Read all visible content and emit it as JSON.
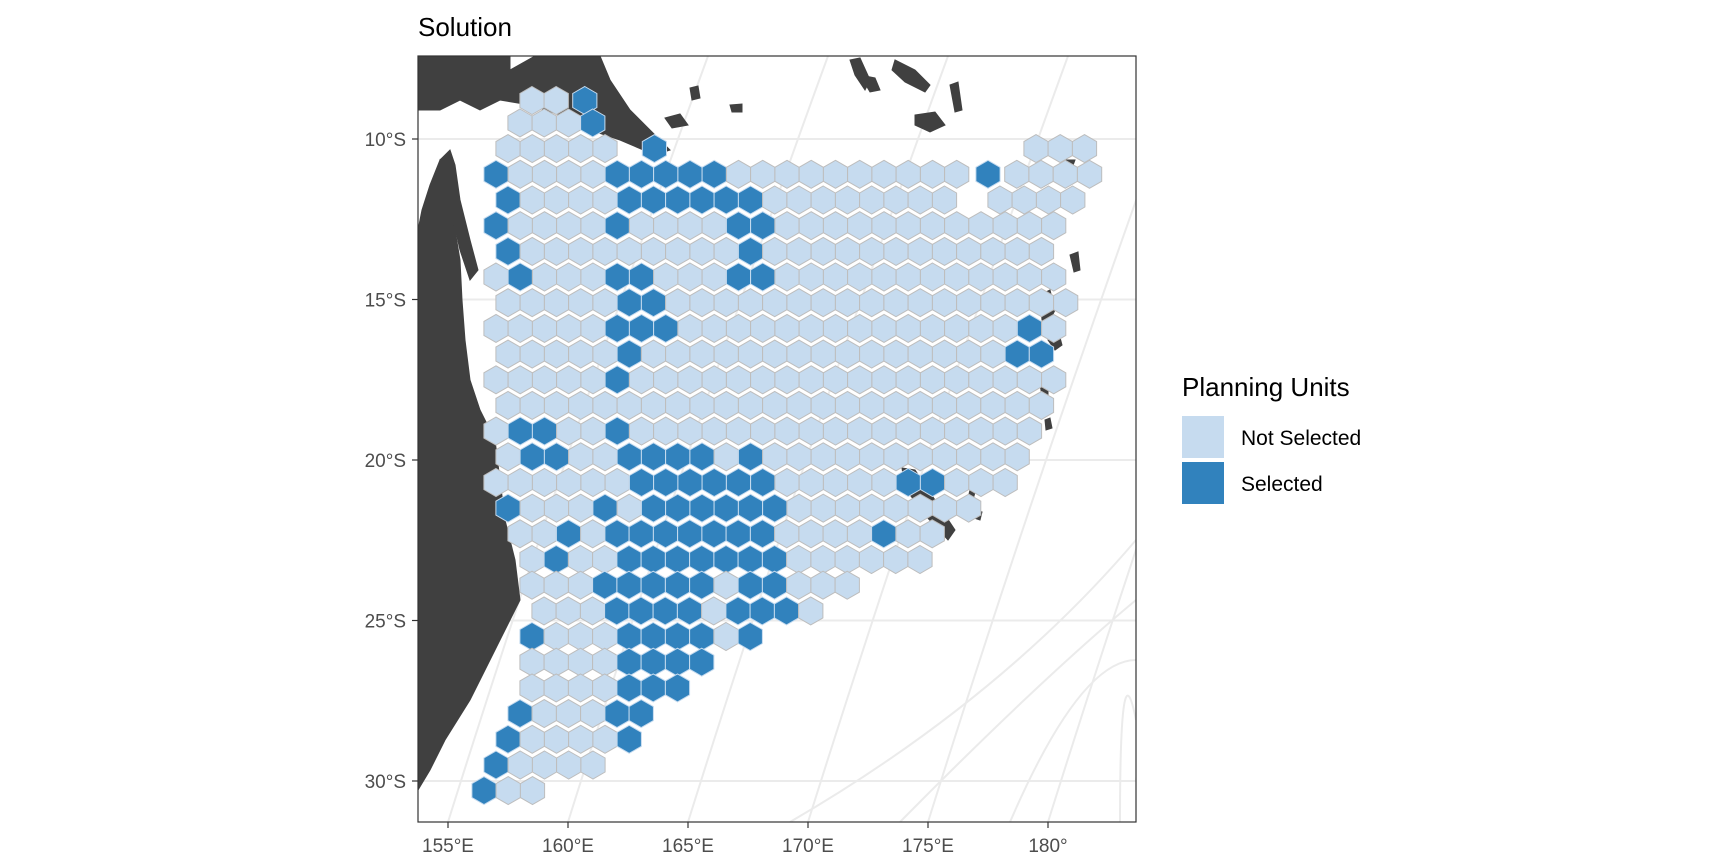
{
  "chart_data": {
    "type": "map",
    "title": "Solution",
    "x_ticks": [
      "155°E",
      "160°E",
      "165°E",
      "170°E",
      "175°E",
      "180°"
    ],
    "y_ticks": [
      "10°S",
      "15°S",
      "20°S",
      "25°S",
      "30°S"
    ],
    "legend": {
      "title": "Planning Units",
      "position": "right",
      "items": [
        {
          "label": "Not Selected",
          "color": "#c6dbef"
        },
        {
          "label": "Selected",
          "color": "#3182bd"
        }
      ]
    },
    "grid": true,
    "colors": {
      "not_selected": "#c6dbef",
      "selected": "#3182bd",
      "land": "#404040",
      "hex_border": "#bdbdbd",
      "graticule": "#ebebeb",
      "panel_border": "#333333"
    },
    "planning_units": {
      "rows": [
        {
          "lat": -8.8,
          "not_selected": [
            [
              158.5,
              159.6
            ]
          ],
          "selected": [
            160.7
          ]
        },
        {
          "lat": -9.5,
          "not_selected": [
            [
              158.0,
              161.3
            ]
          ],
          "selected": [
            161.3
          ]
        },
        {
          "lat": -10.3,
          "not_selected": [
            [
              157.5,
              162.5
            ],
            [
              179.5,
              181.5
            ]
          ],
          "selected": [
            162.5,
            163.6
          ]
        },
        {
          "lat": -11.1,
          "not_selected": [
            [
              157.0,
              176.4
            ],
            [
              178.7,
              182.0
            ]
          ],
          "selected": [
            157.0,
            162.0,
            163.1,
            164.2,
            165.3,
            166.4,
            177.5
          ]
        },
        {
          "lat": -11.9,
          "not_selected": [
            [
              157.5,
              175.8
            ],
            [
              178.0,
              181.5
            ]
          ],
          "selected": [
            157.5,
            162.5,
            163.6,
            164.7,
            165.8,
            166.9,
            168.0
          ]
        },
        {
          "lat": -12.7,
          "not_selected": [
            [
              157.0,
              181.0
            ]
          ],
          "selected": [
            157.0,
            162.0,
            167.4,
            168.5
          ]
        },
        {
          "lat": -13.5,
          "not_selected": [
            [
              157.5,
              180.5
            ]
          ],
          "selected": [
            157.5,
            168.0
          ]
        },
        {
          "lat": -14.3,
          "not_selected": [
            [
              157.0,
              181.0
            ]
          ],
          "selected": [
            158.0,
            162.0,
            163.1,
            167.4,
            168.5
          ]
        },
        {
          "lat": -15.1,
          "not_selected": [
            [
              157.5,
              181.5
            ]
          ],
          "selected": [
            162.5,
            163.6
          ]
        },
        {
          "lat": -15.9,
          "not_selected": [
            [
              157.0,
              181.0
            ]
          ],
          "selected": [
            162.0,
            163.1,
            164.2,
            179.5
          ]
        },
        {
          "lat": -16.7,
          "not_selected": [
            [
              157.5,
              180.5
            ]
          ],
          "selected": [
            162.5,
            178.7,
            179.8
          ]
        },
        {
          "lat": -17.5,
          "not_selected": [
            [
              157.0,
              181.0
            ]
          ],
          "selected": [
            162.0
          ]
        },
        {
          "lat": -18.3,
          "not_selected": [
            [
              157.5,
              180.5
            ]
          ],
          "selected": []
        },
        {
          "lat": -19.1,
          "not_selected": [
            [
              157.0,
              180.0
            ]
          ],
          "selected": [
            157.8,
            158.9,
            162.0
          ]
        },
        {
          "lat": -19.9,
          "not_selected": [
            [
              157.5,
              179.5
            ]
          ],
          "selected": [
            158.3,
            159.4,
            162.5,
            163.6,
            164.7,
            165.8,
            168.0
          ]
        },
        {
          "lat": -20.7,
          "not_selected": [
            [
              157.0,
              179.0
            ]
          ],
          "selected": [
            163.1,
            164.2,
            165.3,
            166.4,
            167.5,
            168.6,
            174.0,
            175.1
          ]
        },
        {
          "lat": -21.5,
          "not_selected": [
            [
              157.5,
              177.0
            ]
          ],
          "selected": [
            157.5,
            162.0,
            163.1,
            164.2,
            165.3,
            166.4,
            167.5,
            168.6
          ]
        },
        {
          "lat": -22.3,
          "not_selected": [
            [
              158.0,
              176.0
            ]
          ],
          "selected": [
            160.5,
            161.6,
            162.7,
            163.8,
            164.9,
            166.0,
            167.1,
            168.2,
            173.5
          ]
        },
        {
          "lat": -23.1,
          "not_selected": [
            [
              158.5,
              175.0
            ]
          ],
          "selected": [
            160.0,
            162.2,
            163.3,
            164.4,
            165.5,
            166.6,
            167.7,
            168.8
          ]
        },
        {
          "lat": -23.9,
          "not_selected": [
            [
              158.5,
              172.0
            ]
          ],
          "selected": [
            161.6,
            162.7,
            163.8,
            164.9,
            166.0,
            167.1,
            168.2
          ]
        },
        {
          "lat": -24.7,
          "not_selected": [
            [
              159.0,
              170.5
            ]
          ],
          "selected": [
            162.2,
            163.3,
            164.4,
            165.5,
            166.6,
            167.7,
            168.8
          ]
        },
        {
          "lat": -25.5,
          "not_selected": [
            [
              158.5,
              168.0
            ]
          ],
          "selected": [
            158.7,
            162.7,
            163.8,
            164.9,
            166.0,
            167.1
          ]
        },
        {
          "lat": -26.3,
          "not_selected": [
            [
              158.5,
              166.5
            ]
          ],
          "selected": [
            162.2,
            163.3,
            164.4,
            165.5
          ]
        },
        {
          "lat": -27.1,
          "not_selected": [
            [
              158.5,
              165.5
            ]
          ],
          "selected": [
            162.7,
            163.8,
            164.9
          ]
        },
        {
          "lat": -27.9,
          "not_selected": [
            [
              158.0,
              164.0
            ]
          ],
          "selected": [
            157.8,
            162.2,
            163.3
          ]
        },
        {
          "lat": -28.7,
          "not_selected": [
            [
              157.5,
              163.0
            ]
          ],
          "selected": [
            157.3,
            162.7
          ]
        },
        {
          "lat": -29.5,
          "not_selected": [
            [
              157.0,
              161.5
            ]
          ],
          "selected": [
            156.8
          ]
        },
        {
          "lat": -30.3,
          "not_selected": [
            [
              156.5,
              159.0
            ]
          ],
          "selected": [
            156.3
          ]
        }
      ]
    }
  }
}
